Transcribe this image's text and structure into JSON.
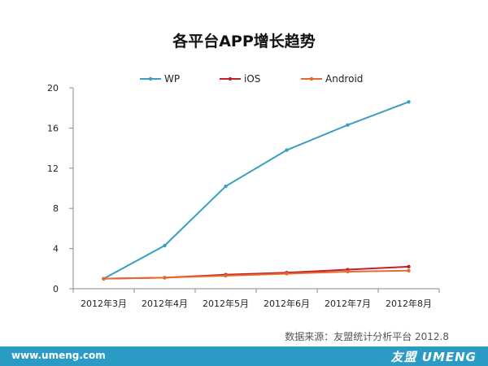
{
  "chart_data": {
    "type": "line",
    "title": "各平台APP增长趋势",
    "categories": [
      "2012年3月",
      "2012年4月",
      "2012年5月",
      "2012年6月",
      "2012年7月",
      "2012年8月"
    ],
    "series": [
      {
        "name": "WP",
        "color": "#3aa0c0",
        "values": [
          1.0,
          4.3,
          10.2,
          13.8,
          16.3,
          18.6
        ]
      },
      {
        "name": "iOS",
        "color": "#c0202a",
        "values": [
          1.0,
          1.1,
          1.4,
          1.6,
          1.9,
          2.2
        ]
      },
      {
        "name": "Android",
        "color": "#e86a2a",
        "values": [
          1.0,
          1.1,
          1.3,
          1.5,
          1.7,
          1.8
        ]
      }
    ],
    "y_ticks": [
      0,
      4,
      8,
      12,
      16,
      20
    ],
    "ylim": [
      0,
      20
    ],
    "grid": false,
    "legend_position": "top"
  },
  "source_note": "数据来源：友盟统计分析平台 2012.8",
  "footer": {
    "url": "www.umeng.com",
    "logo": "友盟 UMENG",
    "background_color": "#2a9bc4"
  }
}
